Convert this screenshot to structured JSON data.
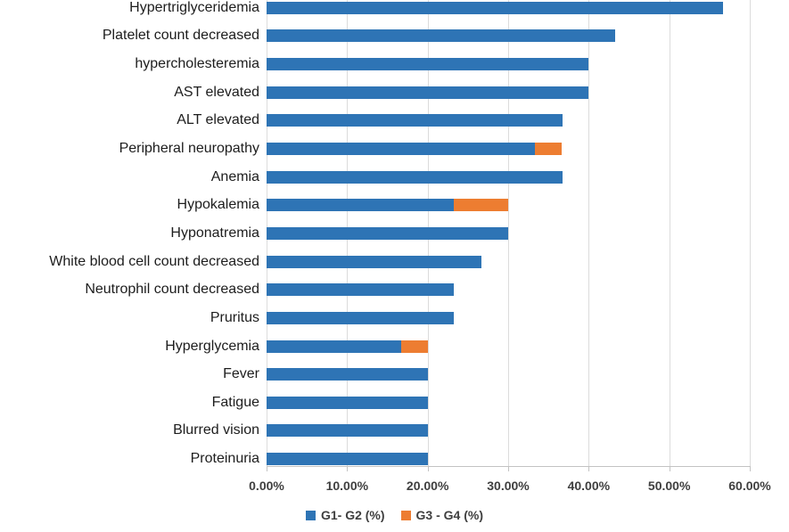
{
  "chart_data": {
    "type": "bar",
    "orientation": "horizontal",
    "stacked": true,
    "grid": true,
    "categories": [
      "Hypertriglyceridemia",
      "Platelet count decreased",
      "hypercholesteremia",
      "AST elevated",
      "ALT elevated",
      "Peripheral neuropathy",
      "Anemia",
      "Hypokalemia",
      "Hyponatremia",
      "White blood cell count decreased",
      "Neutrophil count decreased",
      "Pruritus",
      "Hyperglycemia",
      "Fever",
      "Fatigue",
      "Blurred vision",
      "Proteinuria"
    ],
    "series": [
      {
        "name": "G1- G2 (%)",
        "color": "#2E74B5",
        "values": [
          56.7,
          43.3,
          40.0,
          40.0,
          36.7,
          33.3,
          36.7,
          23.3,
          30.0,
          26.7,
          23.3,
          23.3,
          16.7,
          20.0,
          20.0,
          20.0,
          20.0
        ]
      },
      {
        "name": "G3 - G4 (%)",
        "color": "#ED7D31",
        "values": [
          0,
          0,
          0,
          0,
          0,
          3.3,
          0,
          6.7,
          0,
          0,
          0,
          0,
          3.3,
          0,
          0,
          0,
          0
        ]
      }
    ],
    "x_axis": {
      "min": 0,
      "max": 60,
      "step": 10,
      "tick_labels": [
        "0.00%",
        "10.00%",
        "20.00%",
        "30.00%",
        "40.00%",
        "50.00%",
        "60.00%"
      ]
    },
    "legend": {
      "position": "bottom",
      "entries": [
        {
          "label": "G1- G2 (%)",
          "color": "#2E74B5"
        },
        {
          "label": "G3 - G4 (%)",
          "color": "#ED7D31"
        }
      ]
    }
  },
  "colors": {
    "gridline": "#dcdcdc",
    "axis_line": "#c3c3c3",
    "category_text": "#1d1d1d",
    "axis_text": "#3f3f3f"
  }
}
